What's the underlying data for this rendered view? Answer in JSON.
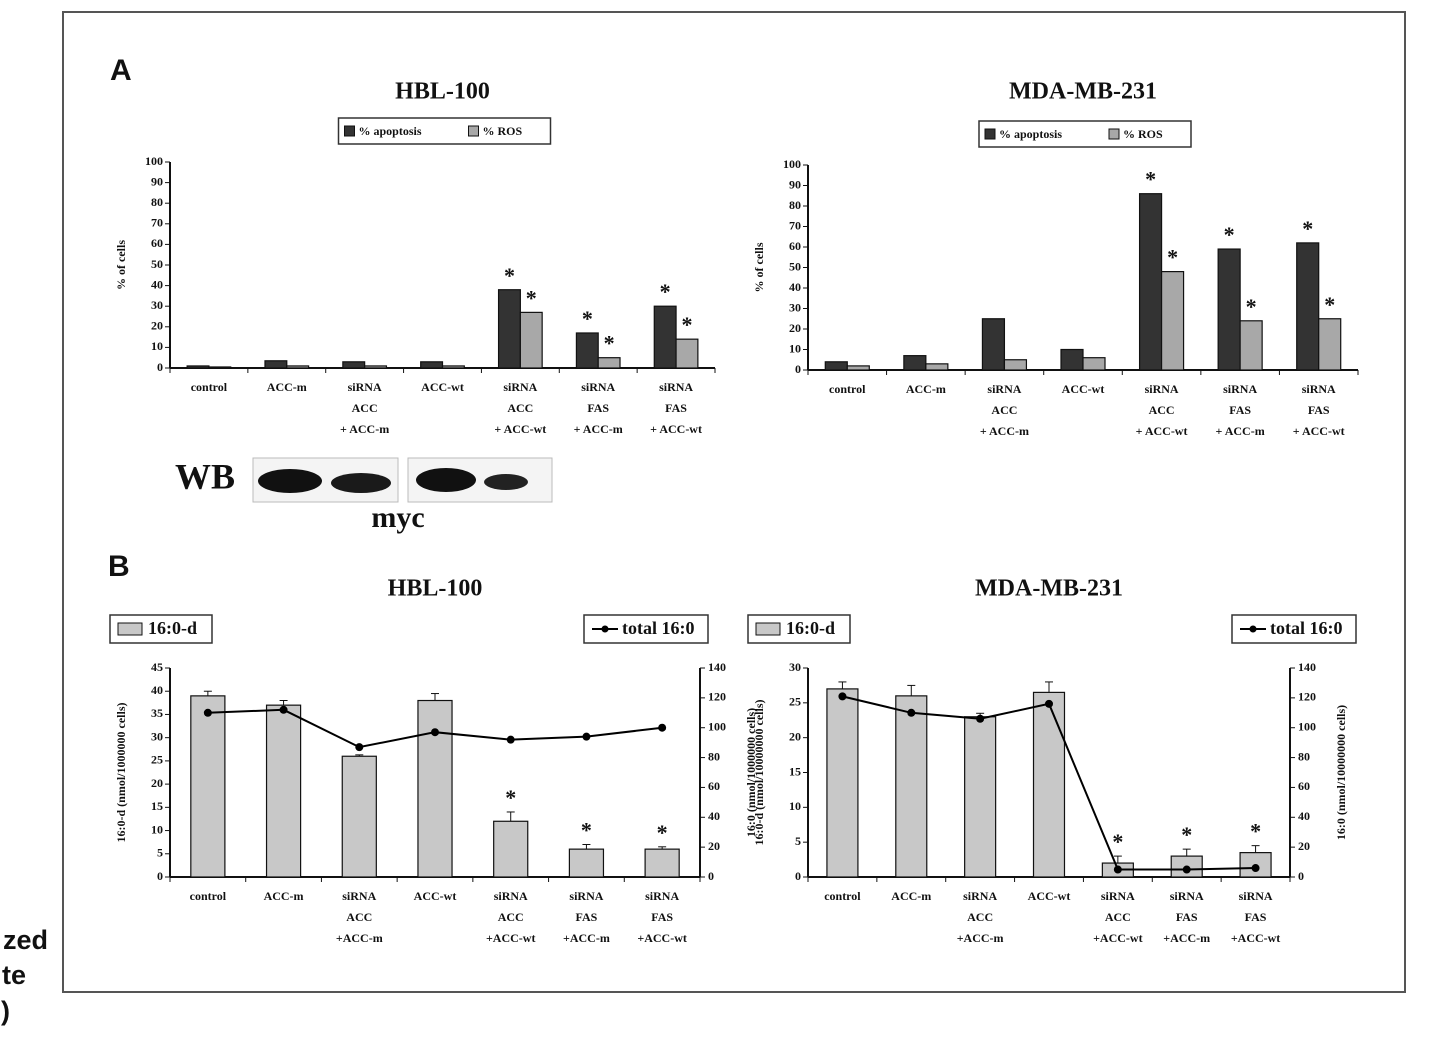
{
  "panel_labels": [
    "A",
    "B"
  ],
  "western_blot": {
    "label": "WB",
    "protein": "myc"
  },
  "side_text": [
    "zed",
    "te",
    ")"
  ],
  "chart_data": [
    {
      "type": "bar",
      "title": "HBL-100",
      "ylabel": "% of cells",
      "legend": "upper center",
      "categories": [
        [
          "control"
        ],
        [
          "ACC-m"
        ],
        [
          "siRNA",
          "ACC",
          "+ ACC-m"
        ],
        [
          "ACC-wt"
        ],
        [
          "siRNA",
          "ACC",
          "+ ACC-wt"
        ],
        [
          "siRNA",
          "FAS",
          "+ ACC-m"
        ],
        [
          "siRNA",
          "FAS",
          "+ ACC-wt"
        ]
      ],
      "series": [
        {
          "name": "% apoptosis",
          "color": "#333333",
          "values": [
            1,
            3.5,
            3,
            3,
            38,
            17,
            30
          ],
          "annotations": [
            null,
            null,
            null,
            null,
            "*",
            "*",
            "*"
          ]
        },
        {
          "name": "% ROS",
          "color": "#a8a8a8",
          "values": [
            0.5,
            1,
            1,
            1,
            27,
            5,
            14
          ],
          "annotations": [
            null,
            null,
            null,
            null,
            "*",
            "*",
            "*"
          ]
        }
      ],
      "ylim": [
        0,
        100
      ],
      "yticks": [
        0,
        10,
        20,
        30,
        40,
        50,
        60,
        70,
        80,
        90,
        100
      ]
    },
    {
      "type": "bar",
      "title": "MDA-MB-231",
      "ylabel": "% of cells",
      "legend": "upper center",
      "categories": [
        [
          "control"
        ],
        [
          "ACC-m"
        ],
        [
          "siRNA",
          "ACC",
          "+ ACC-m"
        ],
        [
          "ACC-wt"
        ],
        [
          "siRNA",
          "ACC",
          "+ ACC-wt"
        ],
        [
          "siRNA",
          "FAS",
          "+ ACC-m"
        ],
        [
          "siRNA",
          "FAS",
          "+ ACC-wt"
        ]
      ],
      "series": [
        {
          "name": "% apoptosis",
          "color": "#333333",
          "values": [
            4,
            7,
            25,
            10,
            86,
            59,
            62
          ],
          "annotations": [
            null,
            null,
            null,
            null,
            "*",
            "*",
            "*"
          ]
        },
        {
          "name": "% ROS",
          "color": "#a8a8a8",
          "values": [
            2,
            3,
            5,
            6,
            48,
            24,
            25
          ],
          "annotations": [
            null,
            null,
            null,
            null,
            "*",
            "*",
            "*"
          ]
        }
      ],
      "ylim": [
        0,
        100
      ],
      "yticks": [
        0,
        10,
        20,
        30,
        40,
        50,
        60,
        70,
        80,
        90,
        100
      ]
    },
    {
      "type": "combo",
      "title": "HBL-100",
      "ylabel": "16:0-d (nmol/1000000 cells)",
      "y2label": "16:0 (nmol/1000000 cells)",
      "categories": [
        [
          "control"
        ],
        [
          "ACC-m"
        ],
        [
          "siRNA",
          "ACC",
          "+ACC-m"
        ],
        [
          "ACC-wt"
        ],
        [
          "siRNA",
          "ACC",
          "+ACC-wt"
        ],
        [
          "siRNA",
          "FAS",
          "+ACC-m"
        ],
        [
          "siRNA",
          "FAS",
          "+ACC-wt"
        ]
      ],
      "series": [
        {
          "name": "16:0-d",
          "color": "#c8c8c8",
          "legend": "upper left",
          "values": [
            39,
            37,
            26,
            38,
            12,
            6,
            6
          ],
          "errors": [
            1,
            1,
            0.3,
            1.5,
            2,
            1,
            0.5
          ],
          "annotations": [
            null,
            null,
            null,
            null,
            "*",
            "*",
            "*"
          ]
        },
        {
          "name": "total 16:0",
          "color": "#000000",
          "legend": "upper right",
          "axis": "y2",
          "values": [
            110,
            112,
            87,
            97,
            92,
            94,
            100
          ]
        }
      ],
      "ylim": [
        0,
        45
      ],
      "yticks": [
        0,
        5,
        10,
        15,
        20,
        25,
        30,
        35,
        40,
        45
      ],
      "y2lim": [
        0,
        140
      ],
      "y2ticks": [
        0,
        20,
        40,
        60,
        80,
        100,
        120,
        140
      ]
    },
    {
      "type": "combo",
      "title": "MDA-MB-231",
      "ylabel": "16:0-d (nmol/10000000 cells)",
      "y2label": "16:0 (nmol/10000000 cells)",
      "categories": [
        [
          "control"
        ],
        [
          "ACC-m"
        ],
        [
          "siRNA",
          "ACC",
          "+ACC-m"
        ],
        [
          "ACC-wt"
        ],
        [
          "siRNA",
          "ACC",
          "+ACC-wt"
        ],
        [
          "siRNA",
          "FAS",
          "+ACC-m"
        ],
        [
          "siRNA",
          "FAS",
          "+ACC-wt"
        ]
      ],
      "series": [
        {
          "name": "16:0-d",
          "color": "#c8c8c8",
          "legend": "upper left",
          "values": [
            27,
            26,
            23,
            26.5,
            2,
            3,
            3.5
          ],
          "errors": [
            1,
            1.5,
            0.5,
            1.5,
            1,
            1,
            1
          ],
          "annotations": [
            null,
            null,
            null,
            null,
            "*",
            "*",
            "*"
          ]
        },
        {
          "name": "total 16:0",
          "color": "#000000",
          "legend": "upper right",
          "axis": "y2",
          "values": [
            121,
            110,
            106,
            116,
            5,
            5,
            6
          ]
        }
      ],
      "ylim": [
        0,
        30
      ],
      "yticks": [
        0,
        5,
        10,
        15,
        20,
        25,
        30
      ],
      "y2lim": [
        0,
        140
      ],
      "y2ticks": [
        0,
        20,
        40,
        60,
        80,
        100,
        120,
        140
      ]
    }
  ]
}
